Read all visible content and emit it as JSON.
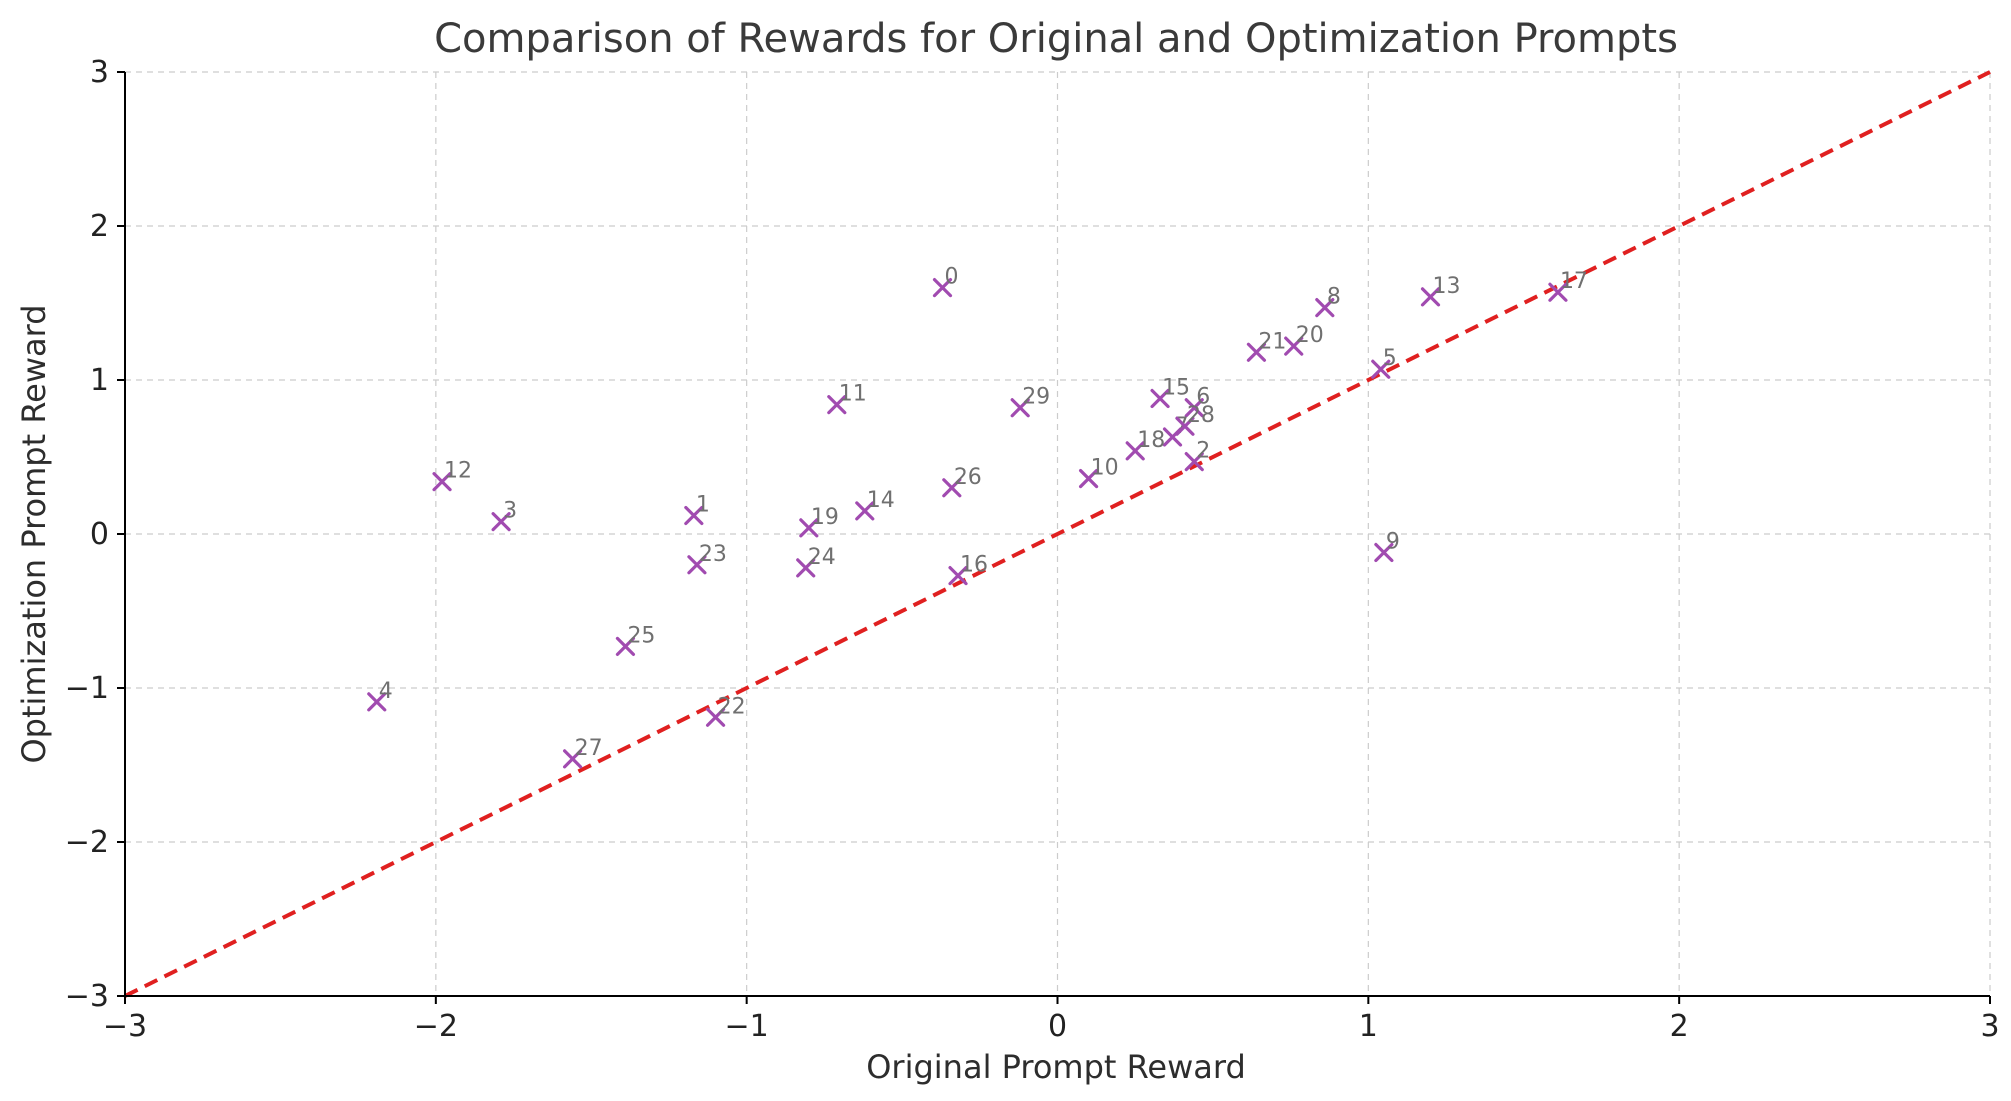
{
  "chart_data": {
    "type": "scatter",
    "title": "Comparison of Rewards for Original and Optimization Prompts",
    "xlabel": "Original Prompt Reward",
    "ylabel": "Optimization Prompt Reward",
    "xlim": [
      -3,
      3
    ],
    "ylim": [
      -3,
      3
    ],
    "x_ticks": [
      -3,
      -2,
      -1,
      0,
      1,
      2,
      3
    ],
    "y_ticks": [
      -3,
      -2,
      -1,
      0,
      1,
      2,
      3
    ],
    "x_tick_labels": [
      "−3",
      "−2",
      "−1",
      "0",
      "1",
      "2",
      "3"
    ],
    "y_tick_labels": [
      "−3",
      "−2",
      "−1",
      "0",
      "1",
      "2",
      "3"
    ],
    "grid": true,
    "marker": "x",
    "point_color": "#a14bb0",
    "reference_line": {
      "style": "dashed",
      "color": "#e02020",
      "from": [
        -3,
        -3
      ],
      "to": [
        3,
        3
      ]
    },
    "points": [
      {
        "label": "0",
        "x": -0.37,
        "y": 1.6
      },
      {
        "label": "1",
        "x": -1.17,
        "y": 0.12
      },
      {
        "label": "2",
        "x": 0.44,
        "y": 0.47
      },
      {
        "label": "3",
        "x": -1.79,
        "y": 0.08
      },
      {
        "label": "4",
        "x": -2.19,
        "y": -1.09
      },
      {
        "label": "5",
        "x": 1.04,
        "y": 1.07
      },
      {
        "label": "6",
        "x": 0.44,
        "y": 0.82
      },
      {
        "label": "7",
        "x": 0.37,
        "y": 0.63
      },
      {
        "label": "8",
        "x": 0.86,
        "y": 1.47
      },
      {
        "label": "9",
        "x": 1.05,
        "y": -0.12
      },
      {
        "label": "10",
        "x": 0.1,
        "y": 0.36
      },
      {
        "label": "11",
        "x": -0.71,
        "y": 0.84
      },
      {
        "label": "12",
        "x": -1.98,
        "y": 0.34
      },
      {
        "label": "13",
        "x": 1.2,
        "y": 1.54
      },
      {
        "label": "14",
        "x": -0.62,
        "y": 0.15
      },
      {
        "label": "15",
        "x": 0.33,
        "y": 0.88
      },
      {
        "label": "16",
        "x": -0.32,
        "y": -0.27
      },
      {
        "label": "17",
        "x": 1.61,
        "y": 1.57
      },
      {
        "label": "18",
        "x": 0.25,
        "y": 0.54
      },
      {
        "label": "19",
        "x": -0.8,
        "y": 0.04
      },
      {
        "label": "20",
        "x": 0.76,
        "y": 1.22
      },
      {
        "label": "21",
        "x": 0.64,
        "y": 1.18
      },
      {
        "label": "22",
        "x": -1.1,
        "y": -1.19
      },
      {
        "label": "23",
        "x": -1.16,
        "y": -0.2
      },
      {
        "label": "24",
        "x": -0.81,
        "y": -0.22
      },
      {
        "label": "25",
        "x": -1.39,
        "y": -0.73
      },
      {
        "label": "26",
        "x": -0.34,
        "y": 0.3
      },
      {
        "label": "27",
        "x": -1.56,
        "y": -1.46
      },
      {
        "label": "28",
        "x": 0.41,
        "y": 0.7
      },
      {
        "label": "29",
        "x": -0.12,
        "y": 0.82
      }
    ]
  }
}
